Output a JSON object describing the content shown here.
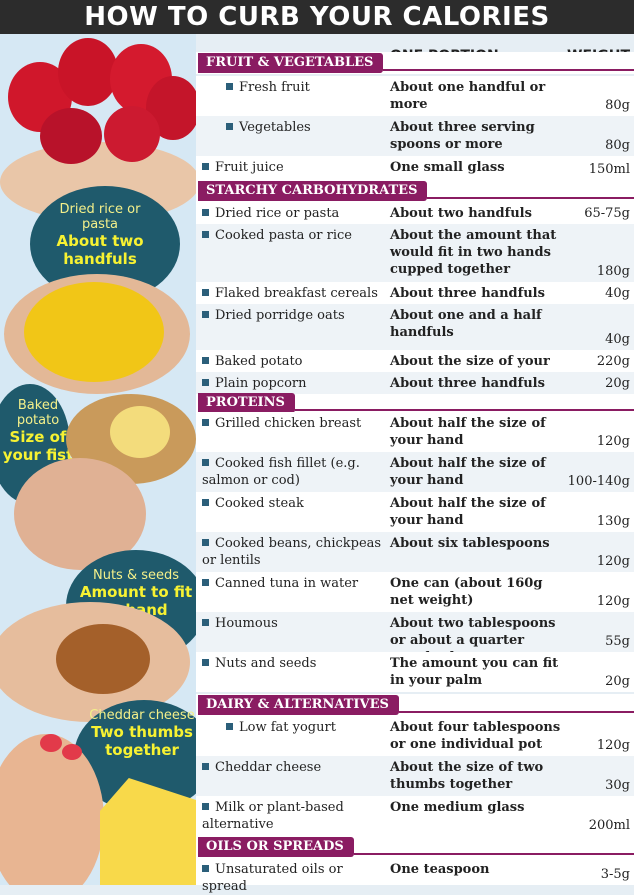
{
  "title": "HOW TO CURB YOUR CALORIES",
  "columns": {
    "portion": "ONE PORTION",
    "weight": "WEIGHT"
  },
  "captions": [
    {
      "small": "Dried rice or pasta",
      "big": "About two handfuls"
    },
    {
      "small": "Baked potato",
      "big": "Size of your fist"
    },
    {
      "small": "Nuts & seeds",
      "big": "Amount to fit in hand"
    },
    {
      "small": "Cheddar cheese",
      "big": "Two thumbs together"
    }
  ],
  "sections": [
    {
      "name": "FRUIT & VEGETABLES",
      "items": [
        {
          "food": "Fresh fruit",
          "portion": "About one handful or more",
          "weight": "80g"
        },
        {
          "food": "Vegetables",
          "portion": "About three serving spoons or more",
          "weight": "80g"
        },
        {
          "food": "Fruit juice",
          "portion": "One small glass",
          "weight": "150ml"
        }
      ]
    },
    {
      "name": "STARCHY CARBOHYDRATES",
      "items": [
        {
          "food": "Dried rice or pasta",
          "portion": "About two handfuls",
          "weight": "65-75g"
        },
        {
          "food": "Cooked pasta or rice",
          "portion": "About the amount that would fit in two hands cupped together",
          "weight": "180g"
        },
        {
          "food": "Flaked breakfast cereals",
          "portion": "About three handfuls",
          "weight": "40g"
        },
        {
          "food": "Dried porridge oats",
          "portion": "About one and a half handfuls",
          "weight": "40g"
        },
        {
          "food": "Baked potato",
          "portion": "About the size of your fist",
          "weight": "220g"
        },
        {
          "food": "Plain popcorn",
          "portion": "About three handfuls",
          "weight": "20g"
        }
      ]
    },
    {
      "name": "PROTEINS",
      "items": [
        {
          "food": "Grilled chicken breast",
          "portion": "About half the size of your hand",
          "weight": "120g"
        },
        {
          "food": "Cooked fish fillet (e.g. salmon or cod)",
          "portion": "About half the size of your hand",
          "weight": "100-140g"
        },
        {
          "food": "Cooked steak",
          "portion": "About half the size of your hand",
          "weight": "130g"
        },
        {
          "food": "Cooked beans, chickpeas or lentils",
          "portion": "About six tablespoons",
          "weight": "120g"
        },
        {
          "food": "Canned tuna in water",
          "portion": "One can (about 160g net weight)",
          "weight": "120g"
        },
        {
          "food": "Houmous",
          "portion": "About two tablespoons or about a quarter standard pot",
          "weight": "55g"
        },
        {
          "food": "Nuts and seeds",
          "portion": "The amount you can fit in your palm",
          "weight": "20g"
        }
      ]
    },
    {
      "name": "DAIRY & ALTERNATIVES",
      "items": [
        {
          "food": "Low fat yogurt",
          "portion": "About four tablespoons or one individual pot",
          "weight": "120g"
        },
        {
          "food": "Cheddar cheese",
          "portion": "About the size of two thumbs together",
          "weight": "30g"
        },
        {
          "food": "Milk or plant-based alternative",
          "portion": "One medium glass",
          "weight": "200ml"
        }
      ]
    },
    {
      "name": "OILS OR SPREADS",
      "items": [
        {
          "food": "Unsaturated oils or spread",
          "portion": "One teaspoon",
          "weight": "3-5g"
        }
      ]
    }
  ]
}
